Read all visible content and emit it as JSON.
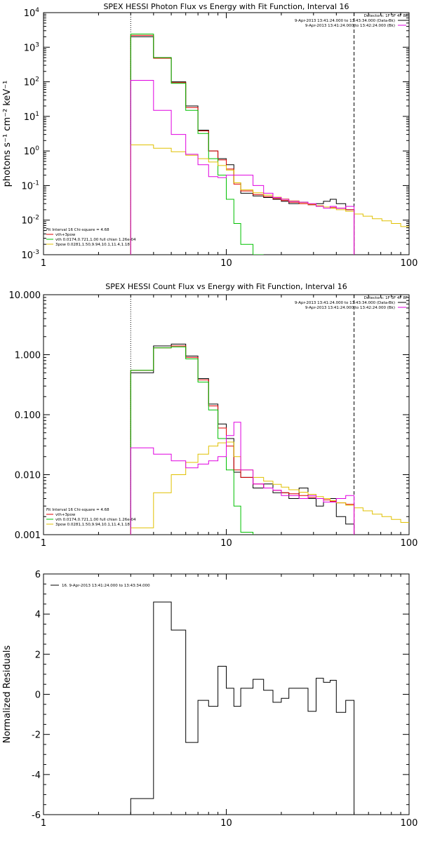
{
  "chart_data": [
    {
      "type": "line",
      "title": "SPEX HESSI Photon Flux vs Energy with Fit Function, Interval 16",
      "ylabel": "photons s⁻¹ cm⁻² keV⁻¹",
      "xlabel": "",
      "xscale": "log",
      "yscale": "log",
      "xlim": [
        1,
        100
      ],
      "ylim": [
        0.001,
        10000
      ],
      "xticks": [
        {
          "v": 1,
          "label": "1"
        },
        {
          "v": 10,
          "label": "10"
        },
        {
          "v": 100,
          "label": "100"
        }
      ],
      "yticks": [
        {
          "v": 0.001,
          "mant": "10",
          "exp": "-3"
        },
        {
          "v": 0.01,
          "mant": "10",
          "exp": "-2"
        },
        {
          "v": 0.1,
          "mant": "10",
          "exp": "-1"
        },
        {
          "v": 1,
          "mant": "10",
          "exp": "0"
        },
        {
          "v": 10,
          "mant": "10",
          "exp": "1"
        },
        {
          "v": 100,
          "mant": "10",
          "exp": "2"
        },
        {
          "v": 1000,
          "mant": "10",
          "exp": "3"
        },
        {
          "v": 10000,
          "mant": "10",
          "exp": "4"
        }
      ],
      "vlines": [
        {
          "x": 3,
          "style": "dotted"
        },
        {
          "x": 50,
          "style": "dashed"
        }
      ],
      "legend_top": [
        {
          "text": "Detectors: 1F 3F 4F 8F",
          "color": null
        },
        {
          "text": "9-Apr-2013 13:41:24.000 to 13:43:34.000 (Data-Bk)",
          "color": "#000000"
        },
        {
          "text": "9-Apr-2013 13:41:24.000 to 13:42:24.000 (Bk)",
          "color": "#e000e0"
        }
      ],
      "legend_bottom": [
        {
          "text": "Fit Interval 16   Chi-square = 4.68",
          "color": null
        },
        {
          "text": "vth+3pow",
          "color": "#e00000"
        },
        {
          "text": "vth 0.0174,0.721,1.00  full chian 1.26e-04",
          "color": "#00c000"
        },
        {
          "text": "3pow 0.0281,1.50,9.94,10.1,11.4,1.18",
          "color": "#e0c000"
        }
      ],
      "edges": [
        3,
        4,
        5,
        6,
        7,
        8,
        9,
        10,
        11,
        12,
        14,
        16,
        18,
        20,
        22,
        25,
        28,
        31,
        34,
        37,
        40,
        45,
        50
      ],
      "series": [
        {
          "name": "9-Apr-2013 13:41:24.000 to 13:43:34.000 (Data-Bk)",
          "color": "#000000",
          "values": [
            2000,
            500,
            100,
            20,
            4,
            1,
            0.6,
            0.4,
            0.12,
            0.06,
            0.05,
            0.045,
            0.04,
            0.035,
            0.03,
            0.033,
            0.028,
            0.03,
            0.035,
            0.04,
            0.03,
            0.02
          ]
        },
        {
          "name": "vth+3pow",
          "color": "#e00000",
          "values": [
            2200,
            480,
            95,
            18,
            3.8,
            1.0,
            0.55,
            0.3,
            0.11,
            0.07,
            0.055,
            0.048,
            0.042,
            0.037,
            0.033,
            0.03,
            0.028,
            0.026,
            0.024,
            0.023,
            0.022,
            0.02
          ]
        },
        {
          "name": "vth",
          "color": "#00c000",
          "values": [
            2400,
            500,
            90,
            15,
            3.2,
            0.6,
            0.2,
            0.04,
            0.008,
            0.002,
            0.0005
          ]
        },
        {
          "name": "3pow",
          "color": "#e0c000",
          "edges": [
            3,
            4,
            5,
            6,
            7,
            8,
            9,
            10,
            11,
            12,
            14,
            16,
            18,
            20,
            22,
            25,
            28,
            31,
            34,
            37,
            40,
            45,
            50,
            56,
            63,
            71,
            80,
            90,
            100
          ],
          "values": [
            1.5,
            1.2,
            0.95,
            0.75,
            0.6,
            0.48,
            0.38,
            0.28,
            0.12,
            0.075,
            0.062,
            0.053,
            0.046,
            0.041,
            0.036,
            0.032,
            0.029,
            0.026,
            0.024,
            0.022,
            0.02,
            0.018,
            0.015,
            0.013,
            0.011,
            0.0095,
            0.008,
            0.0065
          ]
        },
        {
          "name": "9-Apr-2013 13:41:24.000 to 13:42:24.000 (Bk)",
          "color": "#e000e0",
          "values": [
            110,
            15,
            3,
            0.8,
            0.4,
            0.18,
            0.17,
            0.2,
            0.2,
            0.2,
            0.1,
            0.06,
            0.045,
            0.04,
            0.035,
            0.033,
            0.03,
            0.025,
            0.022,
            0.025,
            0.022,
            0.025
          ]
        }
      ]
    },
    {
      "type": "line",
      "title": "SPEX HESSI Count Flux vs Energy with Fit Function, Interval 16",
      "ylabel": "",
      "xlabel": "",
      "xscale": "log",
      "yscale": "log",
      "xlim": [
        1,
        100
      ],
      "ylim": [
        0.001,
        10
      ],
      "xticks": [
        {
          "v": 1,
          "label": "1"
        },
        {
          "v": 10,
          "label": "10"
        },
        {
          "v": 100,
          "label": "100"
        }
      ],
      "yticks": [
        {
          "v": 0.001,
          "label": "0.001"
        },
        {
          "v": 0.01,
          "label": "0.010"
        },
        {
          "v": 0.1,
          "label": "0.100"
        },
        {
          "v": 1,
          "label": "1.000"
        },
        {
          "v": 10,
          "label": "10.000"
        }
      ],
      "vlines": [
        {
          "x": 3,
          "style": "dotted"
        },
        {
          "x": 50,
          "style": "dashed"
        }
      ],
      "legend_top": [
        {
          "text": "Detectors: 1F 3F 4F 8F",
          "color": null
        },
        {
          "text": "9-Apr-2013 13:41:24.000 to 13:43:34.000 (Data-Bk)",
          "color": "#000000"
        },
        {
          "text": "9-Apr-2013 13:41:24.000 to 13:42:24.000 (Bk)",
          "color": "#e000e0"
        }
      ],
      "legend_bottom": [
        {
          "text": "Fit Interval 16   Chi-square = 4.68",
          "color": null
        },
        {
          "text": "vth+3pow",
          "color": "#e00000"
        },
        {
          "text": "vth 0.0174,0.721,1.00  full chian 1.26e-04",
          "color": "#00c000"
        },
        {
          "text": "3pow 0.0281,1.50,9.94,10.1,11.4,1.18",
          "color": "#e0c000"
        }
      ],
      "edges": [
        3,
        4,
        5,
        6,
        7,
        8,
        9,
        10,
        11,
        12,
        14,
        16,
        18,
        20,
        22,
        25,
        28,
        31,
        34,
        37,
        40,
        45,
        50
      ],
      "series": [
        {
          "name": "9-Apr-2013 13:41:24.000 to 13:43:34.000 (Data-Bk)",
          "color": "#000000",
          "values": [
            0.5,
            1.4,
            1.5,
            0.95,
            0.4,
            0.15,
            0.07,
            0.04,
            0.011,
            0.009,
            0.006,
            0.007,
            0.005,
            0.005,
            0.004,
            0.006,
            0.004,
            0.003,
            0.004,
            0.004,
            0.002,
            0.0015
          ]
        },
        {
          "name": "vth+3pow",
          "color": "#e00000",
          "values": [
            0.55,
            1.3,
            1.4,
            0.9,
            0.38,
            0.14,
            0.06,
            0.03,
            0.012,
            0.009,
            0.007,
            0.006,
            0.0055,
            0.005,
            0.0048,
            0.0045,
            0.0042,
            0.004,
            0.0038,
            0.0036,
            0.0034,
            0.0032
          ]
        },
        {
          "name": "vth",
          "color": "#00c000",
          "values": [
            0.55,
            1.3,
            1.35,
            0.85,
            0.35,
            0.12,
            0.04,
            0.012,
            0.003,
            0.0011
          ]
        },
        {
          "name": "3pow",
          "color": "#e0c000",
          "edges": [
            3,
            4,
            5,
            6,
            7,
            8,
            9,
            10,
            11,
            12,
            14,
            16,
            18,
            20,
            22,
            25,
            28,
            31,
            34,
            37,
            40,
            45,
            50,
            56,
            63,
            71,
            80,
            90,
            100
          ],
          "values": [
            0.0013,
            0.005,
            0.01,
            0.016,
            0.022,
            0.03,
            0.034,
            0.035,
            0.02,
            0.012,
            0.009,
            0.0078,
            0.0069,
            0.0062,
            0.0056,
            0.0051,
            0.0047,
            0.0043,
            0.004,
            0.0037,
            0.0034,
            0.0031,
            0.0028,
            0.0025,
            0.0022,
            0.002,
            0.0018,
            0.0016
          ]
        },
        {
          "name": "9-Apr-2013 13:41:24.000 to 13:42:24.000 (Bk)",
          "color": "#e000e0",
          "values": [
            0.028,
            0.022,
            0.017,
            0.013,
            0.015,
            0.017,
            0.02,
            0.045,
            0.075,
            0.012,
            0.007,
            0.006,
            0.0055,
            0.0045,
            0.0045,
            0.004,
            0.0045,
            0.004,
            0.0035,
            0.0035,
            0.004,
            0.0045
          ]
        }
      ]
    },
    {
      "type": "line",
      "title": "",
      "ylabel": "Normalized Residuals",
      "xlabel": "",
      "xscale": "log",
      "yscale": "linear",
      "xlim": [
        1,
        100
      ],
      "ylim": [
        -6,
        6
      ],
      "xticks": [
        {
          "v": 1,
          "label": "1"
        },
        {
          "v": 10,
          "label": "10"
        },
        {
          "v": 100,
          "label": "100"
        }
      ],
      "yticks": [
        {
          "v": -6,
          "label": "-6"
        },
        {
          "v": -4,
          "label": "-4"
        },
        {
          "v": -2,
          "label": "-2"
        },
        {
          "v": 0,
          "label": "0"
        },
        {
          "v": 2,
          "label": "2"
        },
        {
          "v": 4,
          "label": "4"
        },
        {
          "v": 6,
          "label": "6"
        }
      ],
      "vlines": [],
      "legend_top": [
        {
          "text": "16.  9-Apr-2013 13:41:24.000 to 13:43:34.000",
          "color": "#000000"
        }
      ],
      "legend_bottom": [],
      "edges": [
        3,
        4,
        5,
        6,
        7,
        8,
        9,
        10,
        11,
        12,
        14,
        16,
        18,
        20,
        22,
        25,
        28,
        31,
        34,
        37,
        40,
        45,
        50
      ],
      "series": [
        {
          "name": "16.  9-Apr-2013 13:41:24.000 to 13:43:34.000",
          "color": "#000000",
          "values": [
            -5.2,
            4.6,
            3.2,
            -2.4,
            -0.3,
            -0.6,
            1.4,
            0.3,
            -0.6,
            0.3,
            0.75,
            0.2,
            -0.4,
            -0.2,
            0.3,
            0.3,
            -0.85,
            0.8,
            0.6,
            0.7,
            -0.9,
            -0.3
          ]
        }
      ]
    }
  ]
}
